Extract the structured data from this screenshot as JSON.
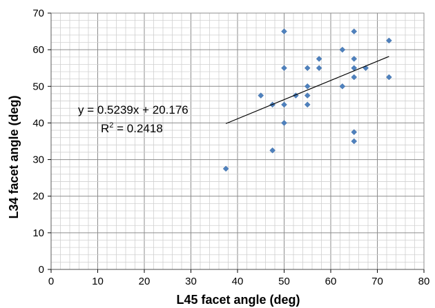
{
  "chart_data": {
    "type": "scatter",
    "xlabel": "L45 facet angle (deg)",
    "ylabel": "L34 facet angle (deg)",
    "xlim": [
      0,
      80
    ],
    "ylim": [
      0,
      70
    ],
    "x_ticks": [
      "0",
      "10",
      "20",
      "30",
      "40",
      "50",
      "60",
      "70",
      "80"
    ],
    "y_ticks": [
      "0",
      "10",
      "20",
      "30",
      "40",
      "50",
      "60",
      "70"
    ],
    "grid": "major and minor",
    "marker_color": "#4f81bd",
    "points": [
      {
        "x": 37.5,
        "y": 27.5
      },
      {
        "x": 45,
        "y": 47.5
      },
      {
        "x": 47.5,
        "y": 45
      },
      {
        "x": 47.5,
        "y": 32.5
      },
      {
        "x": 50,
        "y": 65
      },
      {
        "x": 50,
        "y": 55
      },
      {
        "x": 50,
        "y": 45
      },
      {
        "x": 50,
        "y": 40
      },
      {
        "x": 52.5,
        "y": 47.5
      },
      {
        "x": 55,
        "y": 55
      },
      {
        "x": 55,
        "y": 50
      },
      {
        "x": 55,
        "y": 47.5
      },
      {
        "x": 55,
        "y": 45
      },
      {
        "x": 57.5,
        "y": 57.5
      },
      {
        "x": 57.5,
        "y": 55
      },
      {
        "x": 62.5,
        "y": 60
      },
      {
        "x": 62.5,
        "y": 50
      },
      {
        "x": 65,
        "y": 65
      },
      {
        "x": 65,
        "y": 57.5
      },
      {
        "x": 65,
        "y": 55
      },
      {
        "x": 65,
        "y": 52.5
      },
      {
        "x": 65,
        "y": 37.5
      },
      {
        "x": 65,
        "y": 35
      },
      {
        "x": 67.5,
        "y": 55
      },
      {
        "x": 72.5,
        "y": 62.5
      },
      {
        "x": 72.5,
        "y": 52.5
      }
    ],
    "trendline": {
      "slope": 0.5239,
      "intercept": 20.176,
      "x_range": [
        37.5,
        72.5
      ],
      "equation": "y = 0.5239x + 20.176",
      "r2_prefix": "R",
      "r2_sup": "2",
      "r2_value": " = 0.2418"
    }
  }
}
